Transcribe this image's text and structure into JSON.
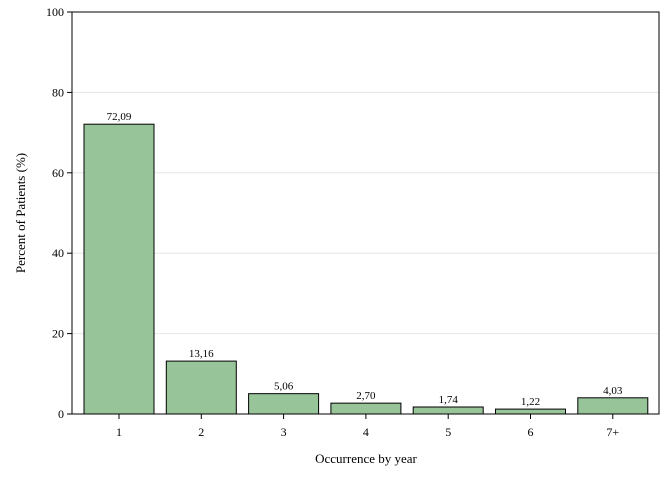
{
  "chart_data": {
    "type": "bar",
    "categories": [
      "1",
      "2",
      "3",
      "4",
      "5",
      "6",
      "7+"
    ],
    "values": [
      72.09,
      13.16,
      5.06,
      2.7,
      1.74,
      1.22,
      4.03
    ],
    "data_labels": [
      "72,09",
      "13,16",
      "5,06",
      "2,70",
      "1,74",
      "1,22",
      "4,03"
    ],
    "xlabel": "Occurrence by year",
    "ylabel": "Percent of Patients (%)",
    "ylim": [
      0,
      100
    ],
    "yticks": [
      0,
      20,
      40,
      60,
      80,
      100
    ],
    "grid": true,
    "legend": "none",
    "colors": {
      "bar_fill": "#98c49a",
      "bar_stroke": "#000000",
      "grid": "#e6e6e6"
    }
  }
}
